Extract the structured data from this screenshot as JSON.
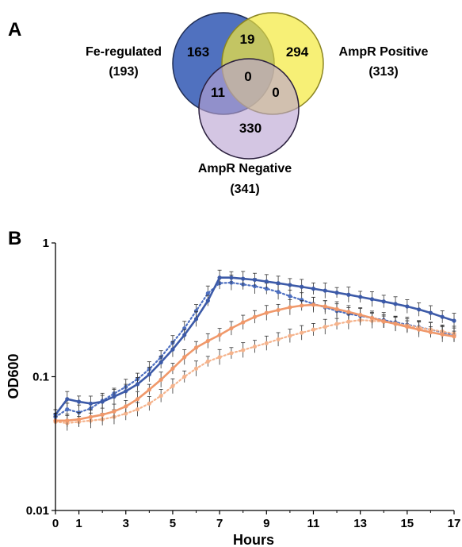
{
  "panel_a": {
    "label": "A",
    "sets": [
      {
        "name": "Fe-regulated",
        "total": "(193)",
        "color": "#3d62b8"
      },
      {
        "name": "AmpR Positive",
        "total": "(313)",
        "color": "#f4ea3c"
      },
      {
        "name": "AmpR Negative",
        "total": "(341)",
        "color": "#b9a3d2"
      }
    ],
    "regions": {
      "fe_only": "163",
      "pos_only": "294",
      "neg_only": "330",
      "fe_pos": "19",
      "fe_neg": "11",
      "pos_neg": "0",
      "all": "0"
    }
  },
  "panel_b": {
    "label": "B"
  },
  "chart_data": {
    "type": "line",
    "xlabel": "Hours",
    "ylabel": "OD600",
    "xlim": [
      0,
      17
    ],
    "ylim": [
      0.01,
      1
    ],
    "yscale": "log",
    "x_ticks": [
      "0",
      "1",
      "3",
      "5",
      "7",
      "9",
      "11",
      "13",
      "15",
      "17"
    ],
    "y_ticks": [
      "0.01",
      "0.1",
      "1"
    ],
    "grid": false,
    "legend": "none",
    "x": [
      0,
      0.5,
      1,
      1.5,
      2,
      2.5,
      3,
      3.5,
      4,
      4.5,
      5,
      5.5,
      6,
      6.5,
      7,
      7.5,
      8,
      8.5,
      9,
      9.5,
      10,
      10.5,
      11,
      11.5,
      12,
      12.5,
      13,
      13.5,
      14,
      14.5,
      15,
      15.5,
      16,
      16.5,
      17
    ],
    "series": [
      {
        "color": "#3c5aa8",
        "style": "solid",
        "values": [
          0.052,
          0.068,
          0.065,
          0.063,
          0.065,
          0.071,
          0.078,
          0.088,
          0.104,
          0.128,
          0.16,
          0.205,
          0.27,
          0.37,
          0.55,
          0.55,
          0.54,
          0.53,
          0.515,
          0.5,
          0.485,
          0.47,
          0.455,
          0.44,
          0.425,
          0.41,
          0.395,
          0.38,
          0.365,
          0.35,
          0.335,
          0.318,
          0.3,
          0.28,
          0.262
        ]
      },
      {
        "color": "#4d6fc0",
        "style": "dotted",
        "values": [
          0.05,
          0.057,
          0.054,
          0.058,
          0.066,
          0.075,
          0.084,
          0.096,
          0.114,
          0.14,
          0.18,
          0.23,
          0.31,
          0.42,
          0.5,
          0.505,
          0.49,
          0.475,
          0.455,
          0.43,
          0.4,
          0.375,
          0.35,
          0.33,
          0.31,
          0.295,
          0.285,
          0.275,
          0.265,
          0.255,
          0.245,
          0.235,
          0.225,
          0.215,
          0.205
        ]
      },
      {
        "color": "#f0986a",
        "style": "solid",
        "values": [
          0.047,
          0.047,
          0.048,
          0.05,
          0.052,
          0.055,
          0.06,
          0.068,
          0.08,
          0.095,
          0.115,
          0.14,
          0.165,
          0.185,
          0.205,
          0.23,
          0.255,
          0.28,
          0.3,
          0.315,
          0.33,
          0.34,
          0.345,
          0.335,
          0.32,
          0.305,
          0.29,
          0.275,
          0.26,
          0.248,
          0.236,
          0.225,
          0.215,
          0.207,
          0.2
        ]
      },
      {
        "color": "#f5b38c",
        "style": "dotted",
        "values": [
          0.046,
          0.045,
          0.046,
          0.047,
          0.048,
          0.05,
          0.053,
          0.057,
          0.063,
          0.072,
          0.085,
          0.1,
          0.115,
          0.13,
          0.14,
          0.15,
          0.158,
          0.168,
          0.178,
          0.19,
          0.202,
          0.213,
          0.225,
          0.236,
          0.248,
          0.258,
          0.265,
          0.262,
          0.257,
          0.25,
          0.242,
          0.233,
          0.225,
          0.218,
          0.21
        ]
      }
    ]
  }
}
